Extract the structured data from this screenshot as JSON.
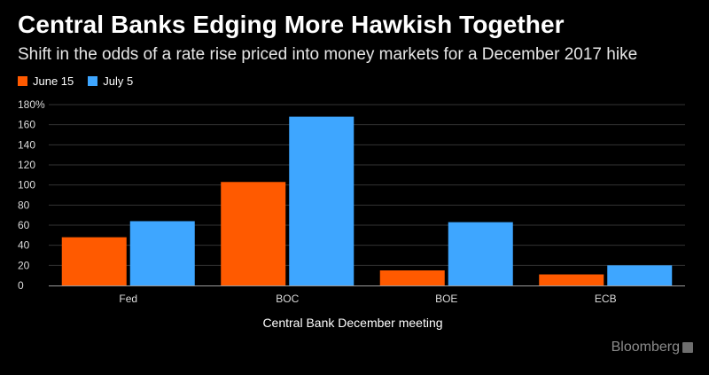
{
  "header": {
    "title": "Central Banks Edging More Hawkish Together",
    "subtitle": "Shift in the odds of a rate rise priced into money markets for a December 2017 hike"
  },
  "brand": {
    "name": "Bloomberg"
  },
  "colors": {
    "background": "#000000",
    "gridline": "#333333",
    "axis": "#9a9a9a",
    "tick_text": "#dcdcdc"
  },
  "chart_data": {
    "type": "bar",
    "categories": [
      "Fed",
      "BOC",
      "BOE",
      "ECB"
    ],
    "series": [
      {
        "name": "June 15",
        "color": "#ff5a00",
        "values": [
          48,
          103,
          15,
          11
        ]
      },
      {
        "name": "July 5",
        "color": "#3ea6ff",
        "values": [
          64,
          168,
          63,
          20
        ]
      }
    ],
    "xlabel": "Central Bank December meeting",
    "ylabel": "",
    "ylim": [
      0,
      180
    ],
    "yticks": [
      0,
      20,
      40,
      60,
      80,
      100,
      120,
      140,
      160,
      180
    ],
    "ytick_labels": [
      "0",
      "20",
      "40",
      "60",
      "80",
      "100",
      "120",
      "140",
      "160",
      "180%"
    ],
    "grid": true,
    "legend_position": "top-left"
  }
}
